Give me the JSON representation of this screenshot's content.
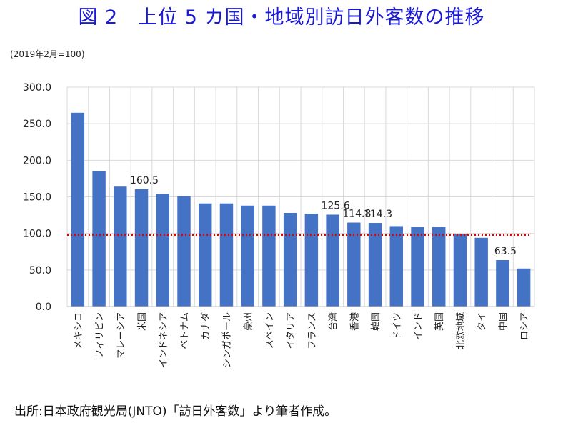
{
  "title": "図 2　上位 5 カ国・地域別訪日外客数の推移",
  "source": "出所:日本政府観光局(JNTO)「訪日外客数」より筆者作成。",
  "colors": {
    "bar": "#4472c4",
    "reference": "#e00000",
    "grid": "#d9d9d9",
    "title": "#1a1ad6"
  },
  "chart_data": {
    "type": "bar",
    "unit_label": "(2019年2月=100)",
    "categories": [
      "メキシコ",
      "フィリピン",
      "マレーシア",
      "米国",
      "インドネシア",
      "ベトナム",
      "カナダ",
      "シンガポール",
      "豪州",
      "スペイン",
      "イタリア",
      "フランス",
      "台湾",
      "香港",
      "韓国",
      "ドイツ",
      "インド",
      "英国",
      "北欧地域",
      "タイ",
      "中国",
      "ロシア"
    ],
    "values": [
      265,
      185,
      164,
      160.5,
      154,
      151,
      141,
      141,
      138,
      138,
      128,
      127,
      125.6,
      114.8,
      114.3,
      110,
      109,
      109,
      99,
      94,
      63.5,
      52
    ],
    "data_labels": [
      {
        "index": 3,
        "text": "160.5"
      },
      {
        "index": 12,
        "text": "125.6"
      },
      {
        "index": 13,
        "text": "114.8"
      },
      {
        "index": 14,
        "text": "114.3"
      },
      {
        "index": 20,
        "text": "63.5"
      }
    ],
    "ylim": [
      0,
      300
    ],
    "yticks": [
      "0.0",
      "50.0",
      "100.0",
      "150.0",
      "200.0",
      "250.0",
      "300.0"
    ],
    "reference_line": 98,
    "grid": true
  }
}
